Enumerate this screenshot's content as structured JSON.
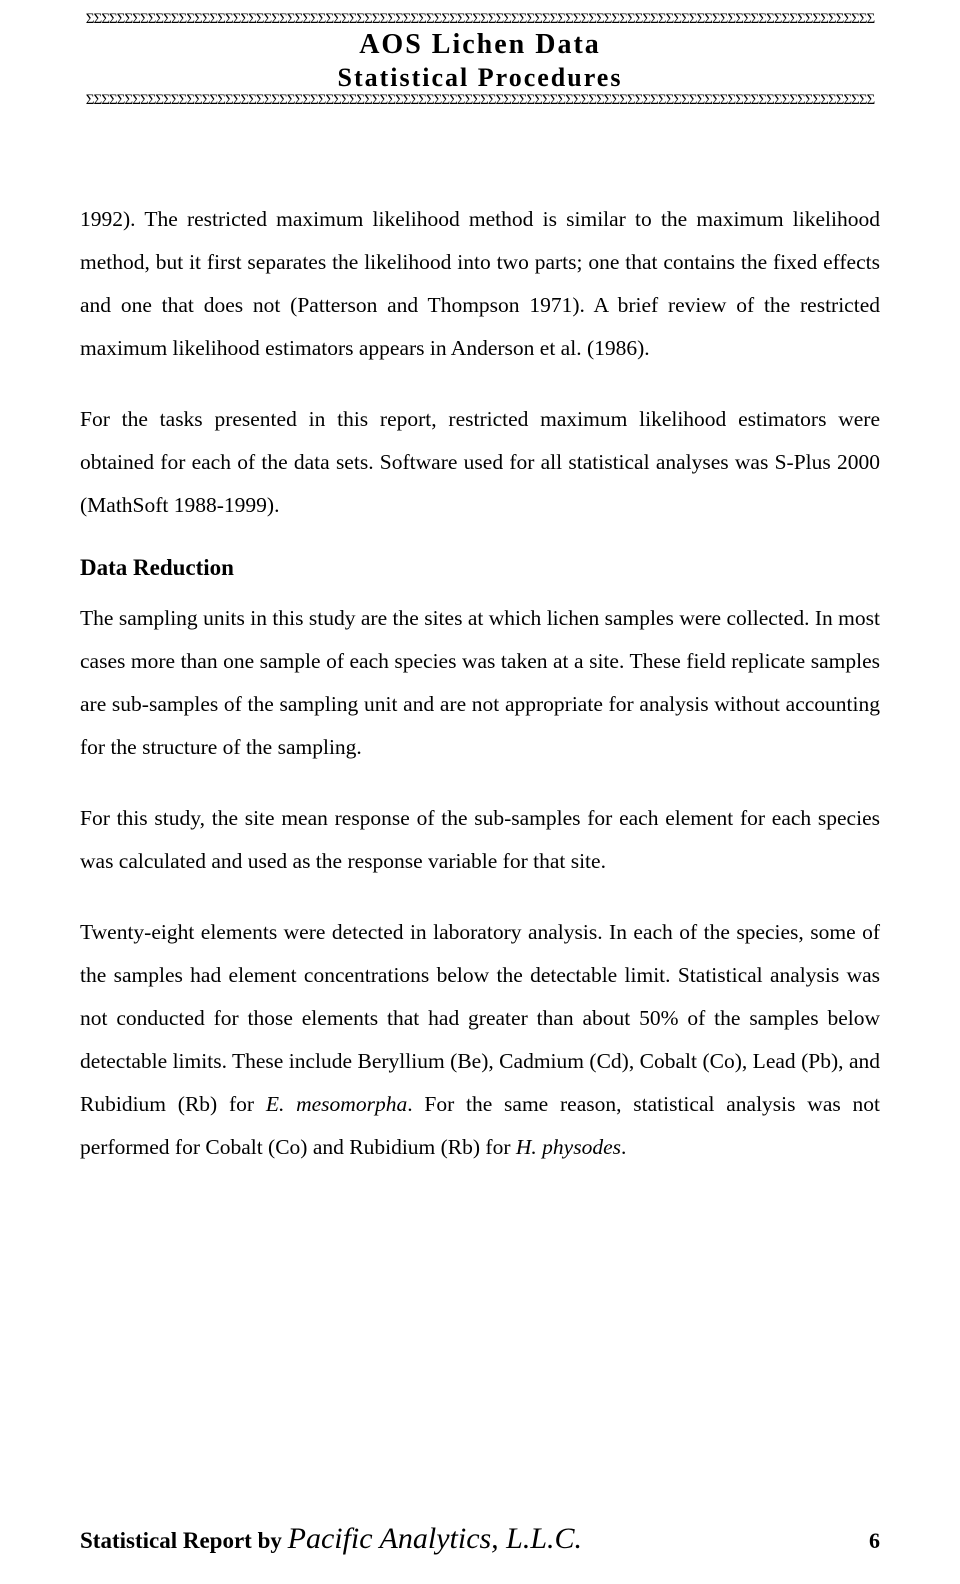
{
  "header": {
    "sigma_top": "ΣΣΣΣΣΣΣΣΣΣΣΣΣΣΣΣΣΣΣΣΣΣΣΣΣΣΣΣΣΣΣΣΣΣΣΣΣΣΣΣΣΣΣΣΣΣΣΣΣΣΣΣΣΣΣΣΣΣΣΣΣΣΣΣΣΣΣΣΣΣΣΣΣΣΣΣΣΣΣΣΣΣΣΣΣΣΣΣΣΣΣΣΣΣΣΣΣΣΣΣΣΣ",
    "title_line1": "AOS Lichen Data",
    "title_line2": "Statistical Procedures",
    "sigma_bottom": "ΣΣΣΣΣΣΣΣΣΣΣΣΣΣΣΣΣΣΣΣΣΣΣΣΣΣΣΣΣΣΣΣΣΣΣΣΣΣΣΣΣΣΣΣΣΣΣΣΣΣΣΣΣΣΣΣΣΣΣΣΣΣΣΣΣΣΣΣΣΣΣΣΣΣΣΣΣΣΣΣΣΣΣΣΣΣΣΣΣΣΣΣΣΣΣΣΣΣΣΣΣΣ"
  },
  "body": {
    "para1": "1992). The restricted maximum likelihood method is similar to the maximum likelihood method, but it first separates the likelihood into two parts; one that contains the fixed effects and one that does not (Patterson and Thompson 1971). A brief review of the restricted maximum likelihood estimators appears in Anderson et al. (1986).",
    "para2": "For the tasks presented in this report, restricted maximum likelihood estimators were obtained for each of the data sets. Software used for all statistical analyses was S-Plus 2000 (MathSoft 1988-1999).",
    "heading1": "Data Reduction",
    "para3": "The sampling units in this study are the sites at which lichen samples were collected. In most cases more than one sample of each species was taken at a site. These field replicate samples are sub-samples of the sampling unit and are not appropriate for analysis without accounting for the structure of the sampling.",
    "para4": "For this study, the site mean response of the sub-samples for each element for each species was calculated and used as the response variable for that site.",
    "para5_part1": "Twenty-eight elements were detected in laboratory analysis. In each of the species, some of the samples had element concentrations below the detectable limit. Statistical analysis was not conducted for those elements that had greater than about 50% of the samples below detectable limits. These include Beryllium (Be), Cadmium (Cd), Cobalt (Co), Lead (Pb), and Rubidium (Rb) for ",
    "para5_italic1": "E. mesomorpha",
    "para5_part2": ". For the same reason, statistical analysis was not performed for Cobalt (Co) and Rubidium (Rb) for ",
    "para5_italic2": "H. physodes",
    "para5_part3": "."
  },
  "footer": {
    "report_text": "Statistical Report by ",
    "company": "Pacific Analytics, L.L.C.",
    "page_number": "6"
  }
}
